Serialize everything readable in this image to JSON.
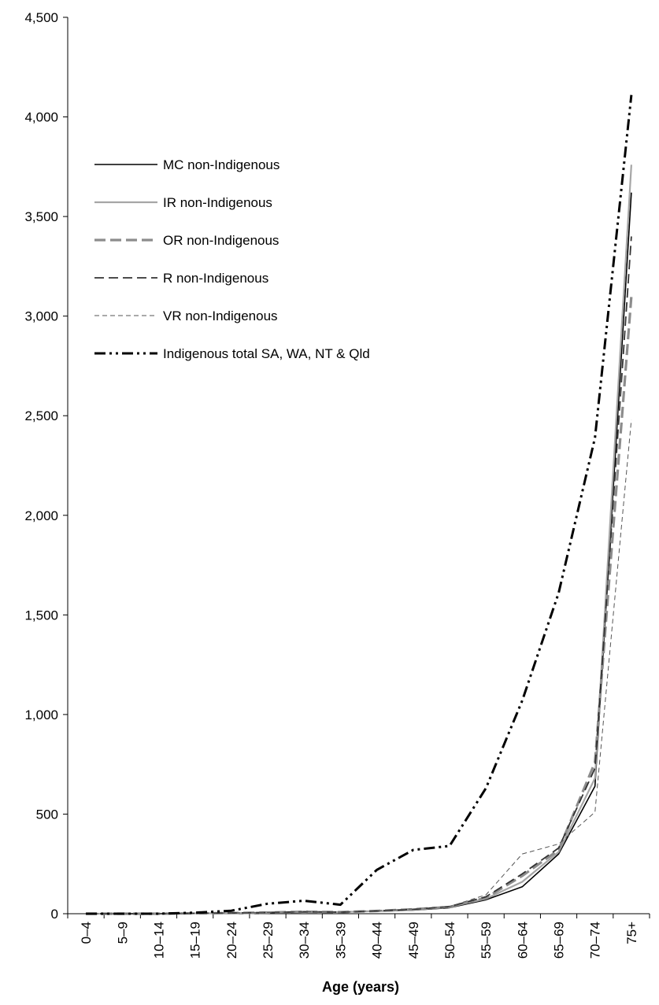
{
  "chart_data": {
    "type": "line",
    "title": "",
    "xlabel": "Age (years)",
    "ylabel": "",
    "ylim": [
      0,
      4500
    ],
    "yticks": [
      0,
      500,
      1000,
      1500,
      2000,
      2500,
      3000,
      3500,
      4000,
      4500
    ],
    "ytick_labels": [
      "0",
      "500",
      "1,000",
      "1,500",
      "2,000",
      "2,500",
      "3,000",
      "3,500",
      "4,000",
      "4,500"
    ],
    "categories": [
      "0–4",
      "5–9",
      "10–14",
      "15–19",
      "20–24",
      "25–29",
      "30–34",
      "35–39",
      "40–44",
      "45–49",
      "50–54",
      "55–59",
      "60–64",
      "65–69",
      "70–74",
      "75+"
    ],
    "grid": false,
    "legend_position": "upper-left",
    "series": [
      {
        "name": "MC non-Indigenous",
        "color": "#000000",
        "dash": "solid",
        "values": [
          0,
          0,
          0,
          2,
          3,
          5,
          8,
          8,
          12,
          18,
          30,
          70,
          135,
          300,
          640,
          3620
        ]
      },
      {
        "name": "IR non-Indigenous",
        "color": "#a6a6a6",
        "dash": "solid",
        "values": [
          0,
          0,
          0,
          2,
          3,
          6,
          10,
          8,
          14,
          20,
          34,
          75,
          160,
          310,
          680,
          3760
        ]
      },
      {
        "name": "OR non-Indigenous",
        "color": "#8c8c8c",
        "dash": "dash-thick",
        "values": [
          0,
          0,
          0,
          2,
          3,
          6,
          10,
          8,
          14,
          22,
          34,
          80,
          190,
          320,
          760,
          3100
        ]
      },
      {
        "name": "R non-Indigenous",
        "color": "#333333",
        "dash": "dash",
        "values": [
          0,
          0,
          0,
          2,
          4,
          6,
          10,
          8,
          14,
          22,
          36,
          85,
          200,
          330,
          730,
          3400
        ]
      },
      {
        "name": "VR non-Indigenous",
        "color": "#555555",
        "dash": "dash-thin",
        "values": [
          0,
          0,
          0,
          2,
          4,
          6,
          10,
          8,
          16,
          24,
          36,
          95,
          300,
          350,
          510,
          2480
        ]
      },
      {
        "name": "Indigenous total SA, WA, NT & Qld",
        "color": "#000000",
        "dash": "dash-dot-dot",
        "values": [
          0,
          0,
          0,
          5,
          15,
          50,
          65,
          45,
          220,
          320,
          340,
          630,
          1070,
          1610,
          2390,
          4110
        ]
      }
    ]
  }
}
